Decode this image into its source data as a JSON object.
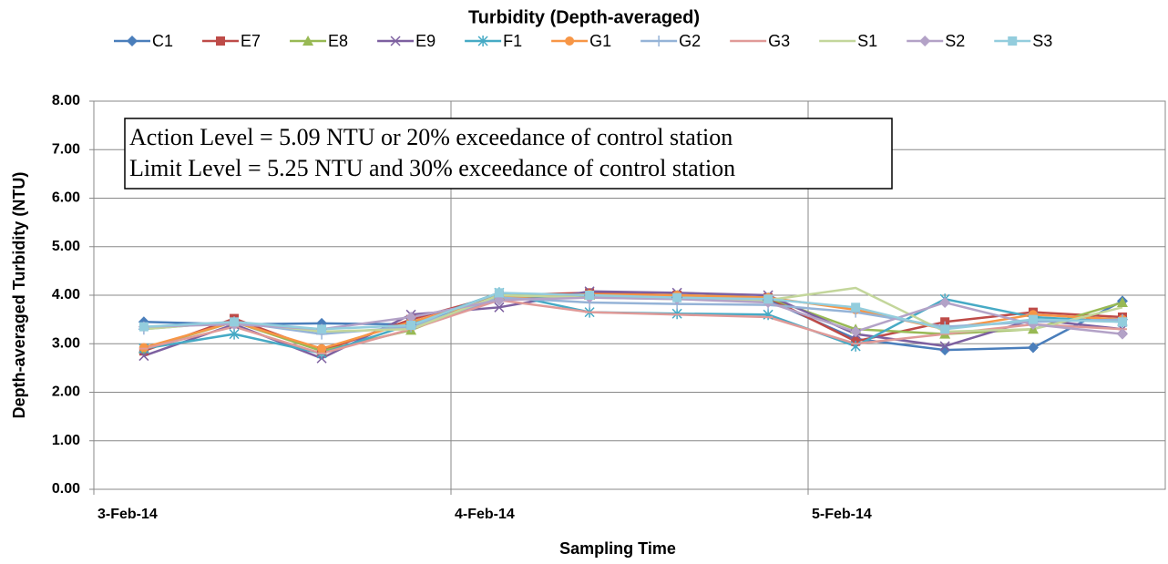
{
  "chart_data": {
    "type": "line",
    "title": "Turbidity (Depth-averaged)",
    "x_label": "Sampling Time",
    "y_label": "Depth-averaged Turbidity  (NTU)",
    "annotations": [
      "Action Level = 5.09 NTU or 20% exceedance of control station",
      "Limit Level = 5.25 NTU and 30% exceedance of control station"
    ],
    "x": [
      0.14,
      0.393,
      0.638,
      0.888,
      1.135,
      1.388,
      1.633,
      1.888,
      2.133,
      2.383,
      2.63,
      2.88
    ],
    "xlim": [
      0,
      3
    ],
    "xticks": [
      {
        "value": 0,
        "label": "3-Feb-14"
      },
      {
        "value": 1,
        "label": "4-Feb-14"
      },
      {
        "value": 2,
        "label": "5-Feb-14"
      }
    ],
    "ylim": [
      0,
      8
    ],
    "yticks": [
      {
        "value": 0,
        "label": "0.00"
      },
      {
        "value": 1,
        "label": "1.00"
      },
      {
        "value": 2,
        "label": "2.00"
      },
      {
        "value": 3,
        "label": "3.00"
      },
      {
        "value": 4,
        "label": "4.00"
      },
      {
        "value": 5,
        "label": "5.00"
      },
      {
        "value": 6,
        "label": "6.00"
      },
      {
        "value": 7,
        "label": "7.00"
      },
      {
        "value": 8,
        "label": "8.00"
      }
    ],
    "grid": true,
    "legend": "top",
    "series": [
      {
        "name": "C1",
        "color": "#4a7ebb",
        "marker": "diamond",
        "values": [
          3.45,
          3.4,
          3.42,
          3.4,
          3.9,
          4.0,
          3.95,
          3.9,
          3.1,
          2.87,
          2.92,
          3.88
        ]
      },
      {
        "name": "E7",
        "color": "#be4b48",
        "marker": "square",
        "values": [
          2.85,
          3.52,
          2.85,
          3.5,
          4.0,
          4.05,
          4.0,
          3.95,
          3.05,
          3.45,
          3.65,
          3.55
        ]
      },
      {
        "name": "E8",
        "color": "#98b954",
        "marker": "triangle",
        "values": [
          2.9,
          3.45,
          2.85,
          3.28,
          4.0,
          4.0,
          4.0,
          3.95,
          3.3,
          3.2,
          3.3,
          3.85
        ]
      },
      {
        "name": "E9",
        "color": "#7d60a0",
        "marker": "x",
        "values": [
          2.75,
          3.4,
          2.7,
          3.6,
          3.75,
          4.08,
          4.05,
          4.0,
          3.2,
          2.95,
          3.5,
          3.3
        ]
      },
      {
        "name": "F1",
        "color": "#46aac5",
        "marker": "star",
        "values": [
          2.9,
          3.2,
          2.8,
          3.4,
          4.05,
          3.65,
          3.62,
          3.6,
          2.95,
          3.92,
          3.55,
          3.45
        ]
      },
      {
        "name": "G1",
        "color": "#f79646",
        "marker": "circle",
        "values": [
          2.92,
          3.45,
          2.9,
          3.45,
          3.95,
          4.02,
          4.0,
          3.95,
          3.7,
          3.3,
          3.6,
          3.5
        ]
      },
      {
        "name": "G2",
        "color": "#95b3d7",
        "marker": "plus",
        "values": [
          3.3,
          3.45,
          3.2,
          3.35,
          3.95,
          3.85,
          3.82,
          3.8,
          3.65,
          3.35,
          3.45,
          3.5
        ]
      },
      {
        "name": "G3",
        "color": "#e09a98",
        "marker": "dash",
        "values": [
          2.9,
          3.35,
          2.8,
          3.3,
          3.9,
          3.65,
          3.6,
          3.55,
          3.0,
          3.2,
          3.4,
          3.3
        ]
      },
      {
        "name": "S1",
        "color": "#c3d69b",
        "marker": "none",
        "values": [
          3.3,
          3.45,
          3.25,
          3.3,
          4.0,
          3.95,
          3.92,
          3.9,
          4.15,
          3.25,
          3.3,
          3.75
        ]
      },
      {
        "name": "S2",
        "color": "#b3a2c7",
        "marker": "diamond",
        "values": [
          3.35,
          3.4,
          3.3,
          3.55,
          3.9,
          3.95,
          3.92,
          3.85,
          3.25,
          3.85,
          3.4,
          3.2
        ]
      },
      {
        "name": "S3",
        "color": "#93cddd",
        "marker": "square",
        "values": [
          3.35,
          3.45,
          3.3,
          3.38,
          4.05,
          4.0,
          3.95,
          3.92,
          3.75,
          3.3,
          3.5,
          3.45
        ]
      }
    ]
  }
}
